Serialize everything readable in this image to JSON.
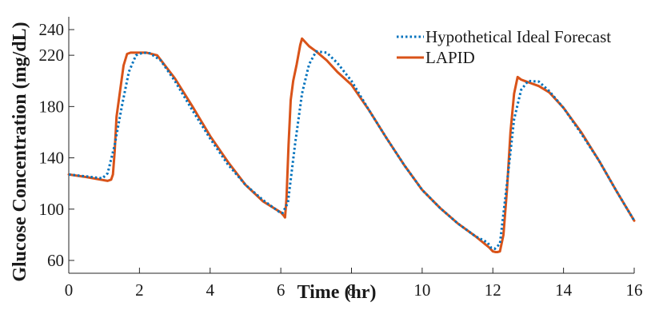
{
  "chart_data": {
    "type": "line",
    "xlabel": "Time (hr)",
    "ylabel": "Glucose Concentration (mg/dL)",
    "xlim": [
      0,
      16
    ],
    "ylim": [
      50,
      250
    ],
    "xticks": [
      0,
      2,
      4,
      6,
      8,
      10,
      12,
      14,
      16
    ],
    "yticks": [
      60,
      100,
      140,
      180,
      220,
      240
    ],
    "grid": false,
    "legend_position": "top-right",
    "series": [
      {
        "name": "Hypothetical Ideal Forecast",
        "style": "dotted",
        "color": "#0072BD",
        "x": [
          0,
          0.5,
          0.95,
          1.1,
          1.3,
          1.5,
          1.7,
          1.9,
          2.1,
          2.3,
          2.6,
          3.0,
          3.5,
          4.0,
          4.5,
          5.0,
          5.5,
          5.95,
          6.05,
          6.2,
          6.4,
          6.6,
          6.8,
          7.0,
          7.3,
          7.6,
          8.0,
          8.5,
          9.0,
          9.5,
          10.0,
          10.5,
          11.0,
          11.5,
          11.85,
          11.95,
          12.05,
          12.2,
          12.4,
          12.6,
          12.8,
          13.0,
          13.3,
          13.6,
          14.0,
          14.5,
          15.0,
          15.5,
          16.0
        ],
        "y": [
          127,
          125.5,
          124,
          128,
          150,
          180,
          207,
          220,
          222,
          221.5,
          216,
          200,
          177,
          155,
          135,
          119,
          107,
          98,
          97,
          105,
          150,
          190,
          213,
          223,
          222,
          214,
          200,
          177,
          155,
          134,
          115,
          101,
          89,
          79,
          74,
          70,
          69,
          73,
          120,
          170,
          193,
          200,
          199.5,
          192,
          179,
          159,
          138,
          114,
          91
        ]
      },
      {
        "name": "LAPID",
        "style": "solid",
        "color": "#D95319",
        "x": [
          0,
          0.5,
          1.0,
          1.1,
          1.2,
          1.25,
          1.3,
          1.35,
          1.45,
          1.55,
          1.65,
          1.75,
          1.85,
          2.0,
          2.2,
          2.5,
          3.0,
          3.5,
          4.0,
          4.5,
          5.0,
          5.5,
          6.0,
          6.08,
          6.12,
          6.16,
          6.22,
          6.28,
          6.35,
          6.45,
          6.55,
          6.6,
          6.7,
          6.8,
          6.9,
          7.0,
          7.3,
          7.6,
          8.0,
          8.5,
          9.0,
          9.5,
          10.0,
          10.5,
          11.0,
          11.5,
          11.9,
          12.0,
          12.08,
          12.13,
          12.2,
          12.3,
          12.4,
          12.5,
          12.6,
          12.7,
          12.8,
          12.9,
          13.0,
          13.3,
          13.6,
          14.0,
          14.5,
          15.0,
          15.5,
          16.0
        ],
        "y": [
          127,
          125,
          122.5,
          122,
          123,
          127,
          145,
          172,
          192,
          212,
          221,
          222,
          222,
          222,
          222,
          220,
          202,
          180,
          157,
          137,
          119,
          106,
          97.5,
          95,
          93.5,
          108,
          150,
          185,
          200,
          213,
          228,
          233,
          230,
          227,
          225,
          223,
          216,
          207,
          197,
          177,
          155,
          134,
          115,
          101,
          89,
          79,
          70,
          67,
          66.5,
          66.5,
          67,
          80,
          115,
          160,
          190,
          203,
          201,
          200,
          199,
          196,
          191,
          179,
          160,
          138,
          114,
          91
        ]
      }
    ]
  }
}
